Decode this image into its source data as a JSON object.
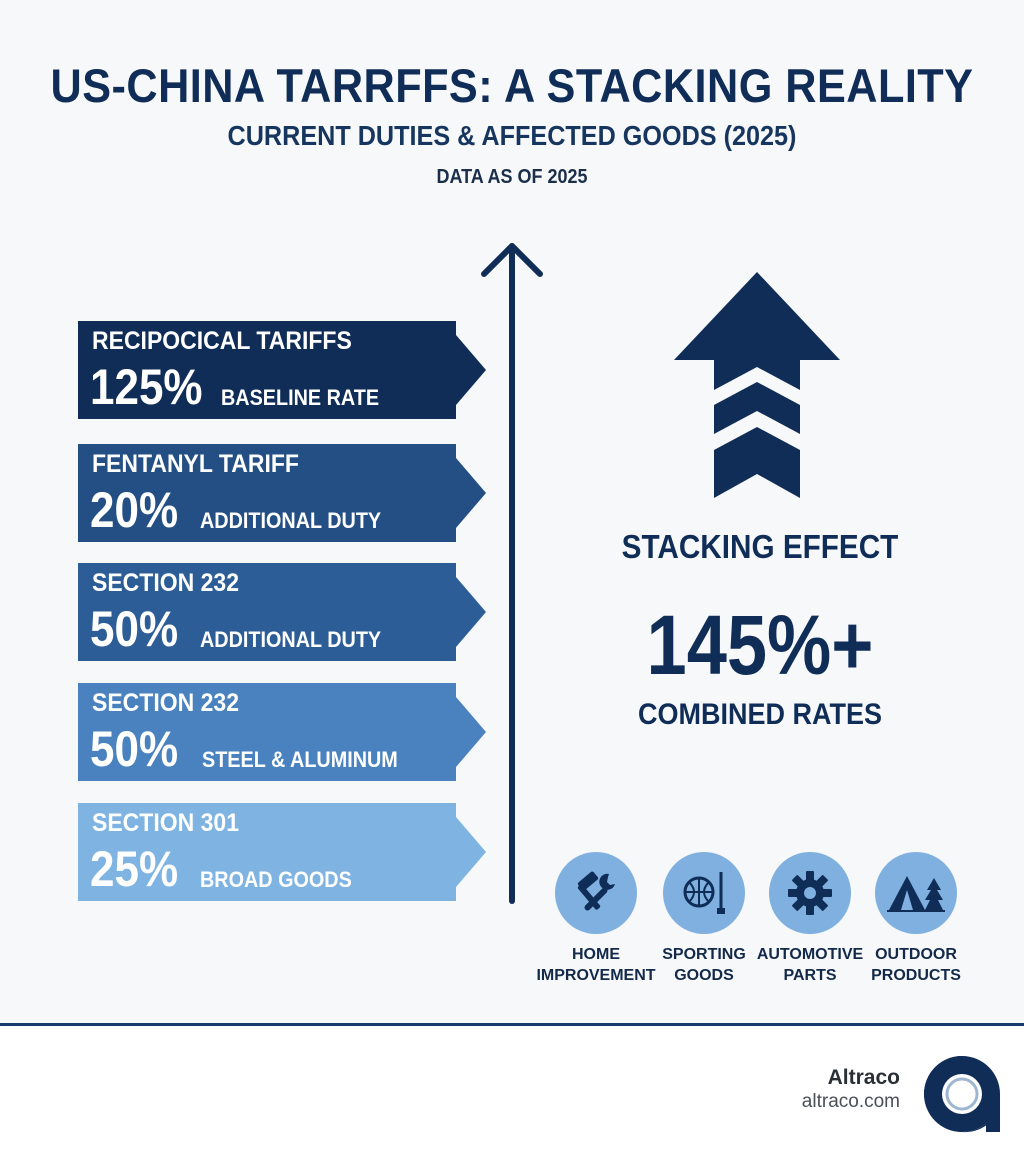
{
  "header": {
    "title": "US-CHINA TARRFFS: A STACKING REALITY",
    "subtitle": "CURRENT DUTIES & AFFECTED GOODS (2025)",
    "as_of": "DATA AS OF 2025"
  },
  "tariffs": [
    {
      "name": "RECIPOCICAL TARIFFS",
      "rate": "125%",
      "desc": "BASELINE RATE",
      "color": "#0f2d56"
    },
    {
      "name": "FENTANYL TARIFF",
      "rate": "20%",
      "desc": "ADDITIONAL DUTY",
      "color": "#234f85"
    },
    {
      "name": "SECTION 232",
      "rate": "50%",
      "desc": "ADDITIONAL DUTY",
      "color": "#2d5d96"
    },
    {
      "name": "SECTION 232",
      "rate": "50%",
      "desc": "STEEL & ALUMINUM",
      "color": "#4a82bf"
    },
    {
      "name": "SECTION 301",
      "rate": "25%",
      "desc": "BROAD GOODS",
      "color": "#7fb4e2"
    }
  ],
  "stacking": {
    "label": "STACKING EFFECT",
    "value": "145%+",
    "sub": "COMBINED RATES"
  },
  "categories": [
    {
      "label": "HOME\nIMPROVEMENT",
      "icon": "tools-icon"
    },
    {
      "label": "SPORTING\nGOODS",
      "icon": "sports-ball-icon"
    },
    {
      "label": "AUTOMOTIVE\nPARTS",
      "icon": "gear-icon"
    },
    {
      "label": "OUTDOOR\nPRODUCTS",
      "icon": "tent-icon"
    }
  ],
  "footer": {
    "brand": "Altraco",
    "url": "altraco.com"
  },
  "colors": {
    "navy": "#0f2d56",
    "icon_circle": "#7fb0e0"
  }
}
